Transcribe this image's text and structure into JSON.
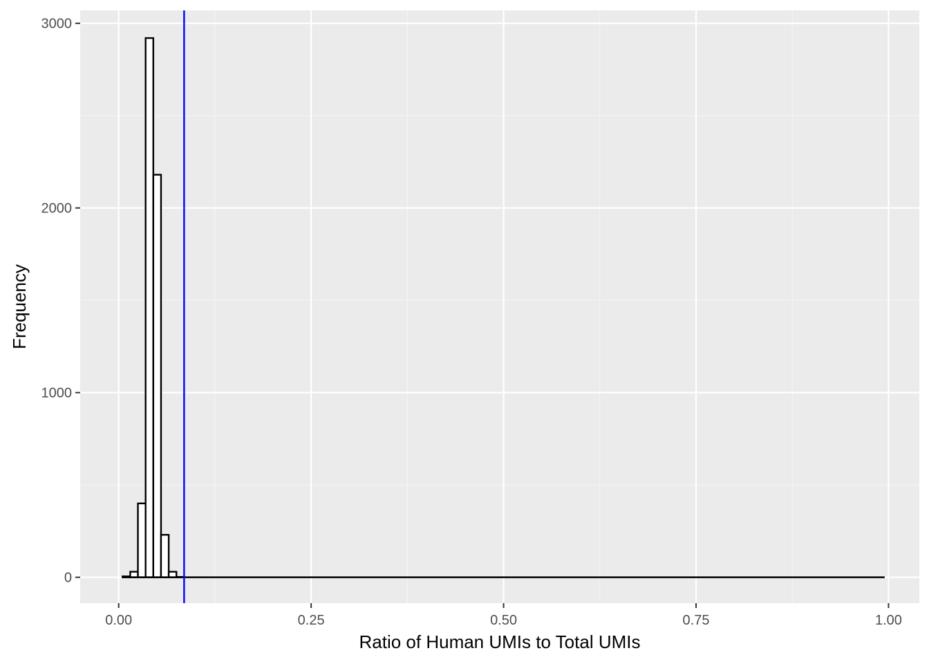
{
  "chart_data": {
    "type": "bar",
    "subtype": "histogram",
    "title": "",
    "xlabel": "Ratio of Human UMIs to Total UMIs",
    "ylabel": "Frequency",
    "xlim": [
      -0.05,
      1.04
    ],
    "ylim": [
      -140,
      3070
    ],
    "x_ticks": [
      0.0,
      0.25,
      0.5,
      0.75,
      1.0
    ],
    "x_tick_labels": [
      "0.00",
      "0.25",
      "0.50",
      "0.75",
      "1.00"
    ],
    "y_ticks": [
      0,
      1000,
      2000,
      3000
    ],
    "y_tick_labels": [
      "0",
      "1000",
      "2000",
      "3000"
    ],
    "grid": true,
    "bin_width": 0.01,
    "bins_start": 0.005,
    "bins_end": 0.995,
    "bars": [
      {
        "x_start": 0.005,
        "x_end": 0.015,
        "count": 5
      },
      {
        "x_start": 0.015,
        "x_end": 0.025,
        "count": 30
      },
      {
        "x_start": 0.025,
        "x_end": 0.035,
        "count": 400
      },
      {
        "x_start": 0.035,
        "x_end": 0.045,
        "count": 2920
      },
      {
        "x_start": 0.045,
        "x_end": 0.055,
        "count": 2180
      },
      {
        "x_start": 0.055,
        "x_end": 0.065,
        "count": 230
      },
      {
        "x_start": 0.065,
        "x_end": 0.075,
        "count": 30
      },
      {
        "x_start": 0.075,
        "x_end": 0.085,
        "count": 2
      }
    ],
    "vline": {
      "x": 0.085,
      "color": "#0000ff"
    },
    "colors": {
      "panel_bg": "#ebebeb",
      "grid_major": "#ffffff",
      "grid_minor": "#f4f4f4",
      "bar_fill": "#ffffff",
      "bar_stroke": "#000000"
    }
  }
}
